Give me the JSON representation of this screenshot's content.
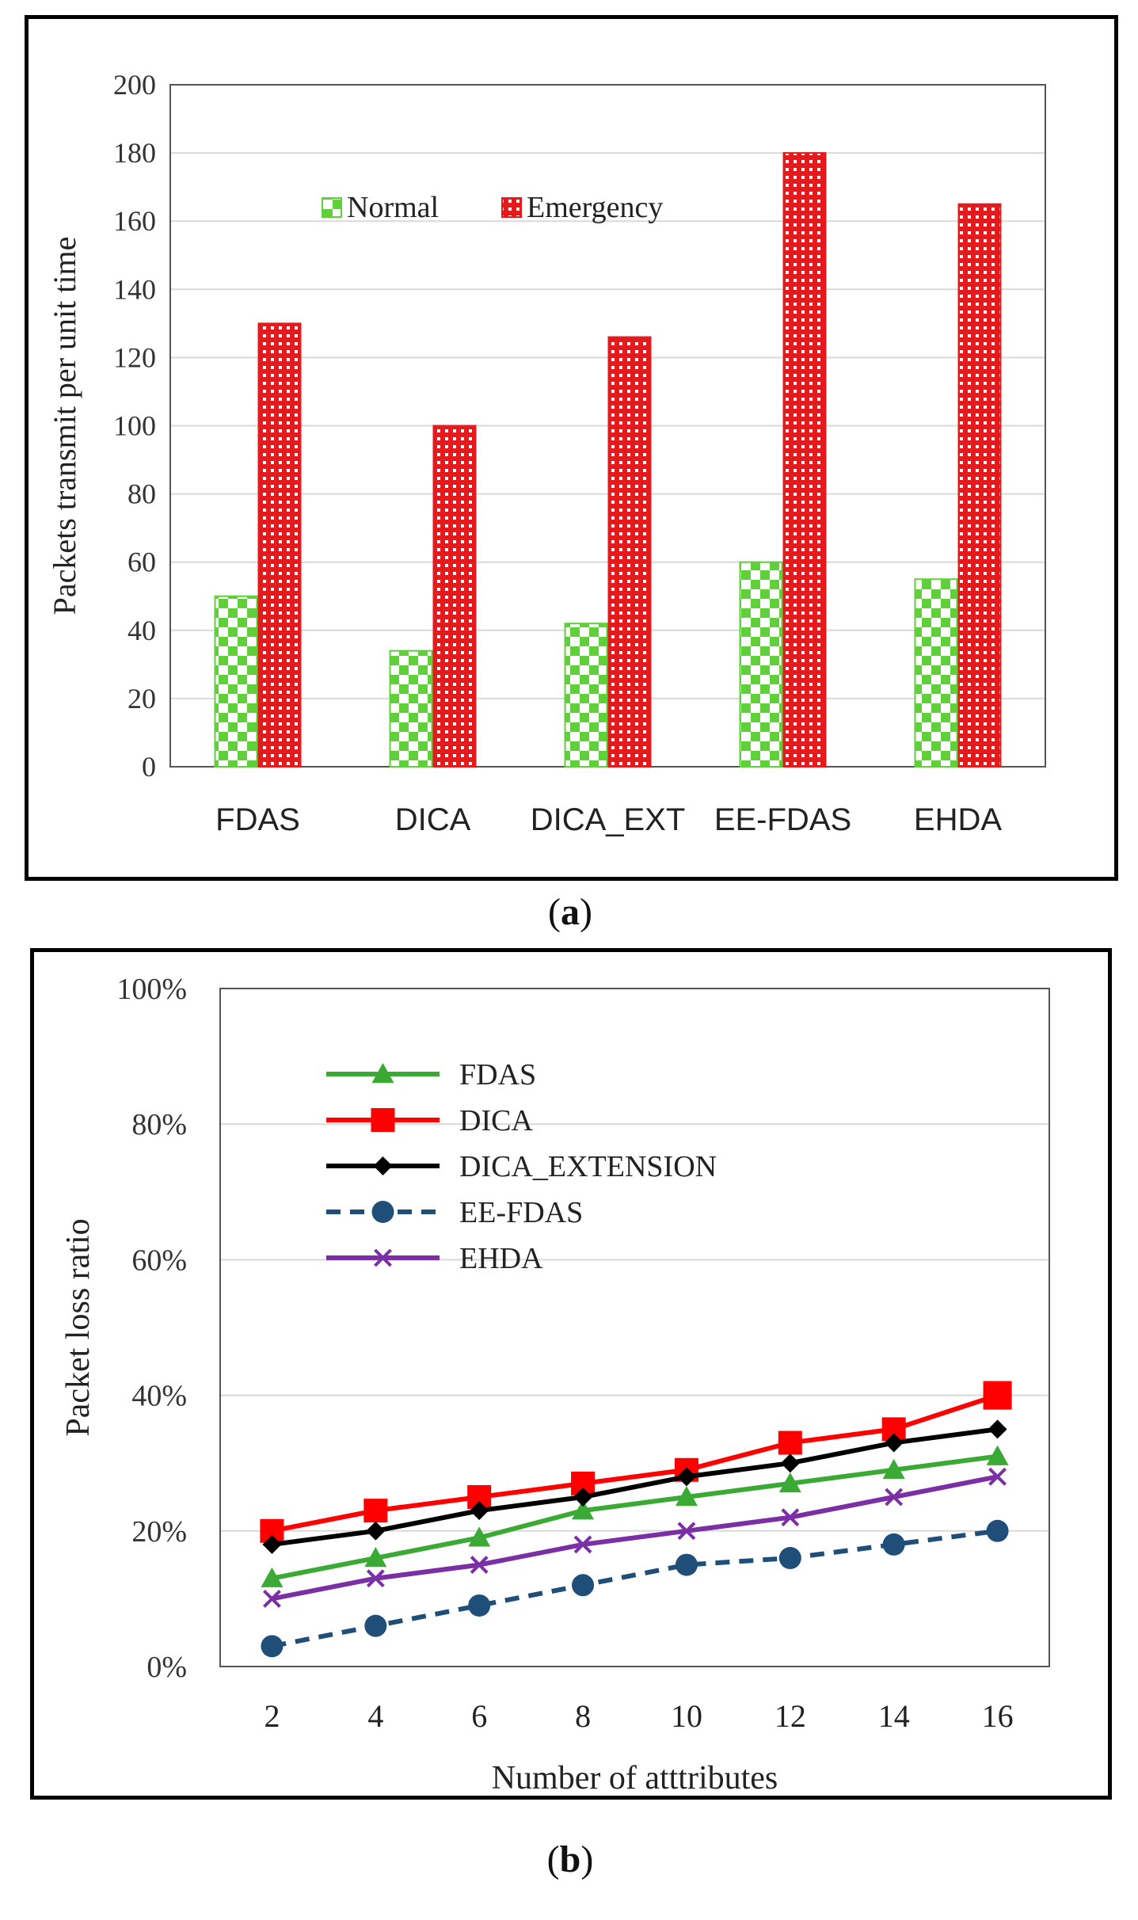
{
  "captions": {
    "a_letter": "a",
    "b_letter": "b"
  },
  "chart_data": [
    {
      "id": "a",
      "type": "bar",
      "title": "",
      "xlabel": "",
      "ylabel": "Packets transmit per unit time",
      "categories": [
        "FDAS",
        "DICA",
        "DICA_EXT",
        "EE-FDAS",
        "EHDA"
      ],
      "ylim": [
        0,
        200
      ],
      "yticks": [
        0,
        20,
        40,
        60,
        80,
        100,
        120,
        140,
        160,
        180,
        200
      ],
      "grid": true,
      "legend_position": "upper-left inside plot, horizontal",
      "series": [
        {
          "name": "Normal",
          "color": "#5fcf3a",
          "pattern": "checker",
          "values": [
            50,
            34,
            42,
            60,
            55
          ]
        },
        {
          "name": "Emergency",
          "color": "#e41a1c",
          "pattern": "dots",
          "values": [
            130,
            100,
            126,
            180,
            165
          ]
        }
      ]
    },
    {
      "id": "b",
      "type": "line",
      "title": "",
      "xlabel": "Number of atttributes",
      "ylabel": "Packet loss ratio",
      "x": [
        2,
        4,
        6,
        8,
        10,
        12,
        14,
        16
      ],
      "ylim": [
        0,
        100
      ],
      "yticks": [
        0,
        20,
        40,
        60,
        80,
        100
      ],
      "ytick_labels": [
        "0%",
        "20%",
        "40%",
        "60%",
        "80%",
        "100%"
      ],
      "grid": true,
      "legend_position": "upper-left inside plot, vertical",
      "series": [
        {
          "name": "FDAS",
          "color": "#3aaa35",
          "marker": "triangle",
          "dash": "solid",
          "values": [
            13,
            16,
            19,
            23,
            25,
            27,
            29,
            31
          ]
        },
        {
          "name": "DICA",
          "color": "#ff0000",
          "marker": "square",
          "dash": "solid",
          "values": [
            20,
            23,
            25,
            27,
            29,
            33,
            35,
            40
          ]
        },
        {
          "name": "DICA_EXTENSION",
          "color": "#000000",
          "marker": "diamond",
          "dash": "solid",
          "values": [
            18,
            20,
            23,
            25,
            28,
            30,
            33,
            35
          ]
        },
        {
          "name": "EE-FDAS",
          "color": "#1f4e79",
          "marker": "circle",
          "dash": "dashed",
          "values": [
            3,
            6,
            9,
            12,
            15,
            16,
            18,
            20
          ]
        },
        {
          "name": "EHDA",
          "color": "#7b2fa5",
          "marker": "x",
          "dash": "solid",
          "values": [
            10,
            13,
            15,
            18,
            20,
            22,
            25,
            28
          ]
        }
      ]
    }
  ]
}
